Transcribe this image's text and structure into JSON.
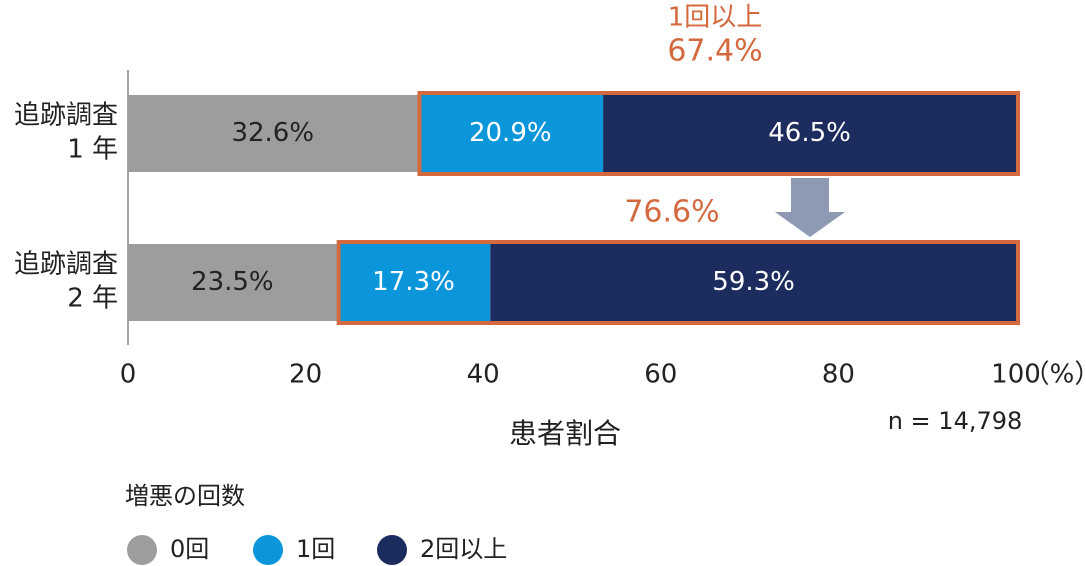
{
  "chart_data": {
    "type": "stacked-bar-horizontal",
    "categories": [
      [
        "追跡調査",
        "1 年"
      ],
      [
        "追跡調査",
        "2 年"
      ]
    ],
    "series": [
      {
        "name": "0回",
        "color": "#9d9d9d",
        "values": [
          32.6,
          23.5
        ],
        "value_labels": [
          "32.6%",
          "23.5%"
        ]
      },
      {
        "name": "1回",
        "color": "#0b96dc",
        "values": [
          20.9,
          17.3
        ],
        "value_labels": [
          "20.9%",
          "17.3%"
        ]
      },
      {
        "name": "2回以上",
        "color": "#1c2c5e",
        "values": [
          46.5,
          59.3
        ],
        "value_labels": [
          "46.5%",
          "59.3%"
        ]
      }
    ],
    "xlim": [
      0,
      100
    ],
    "xticks": [
      0,
      20,
      40,
      60,
      80,
      100
    ],
    "x_unit": "（%）",
    "xlabel": "患者割合",
    "note": "n = 14,798",
    "legend_title": "増悪の回数",
    "highlight_color": "#d4693f",
    "annotations": [
      {
        "lines": [
          "1回以上",
          "67.4%"
        ]
      },
      {
        "lines": [
          "76.6%"
        ]
      }
    ]
  }
}
